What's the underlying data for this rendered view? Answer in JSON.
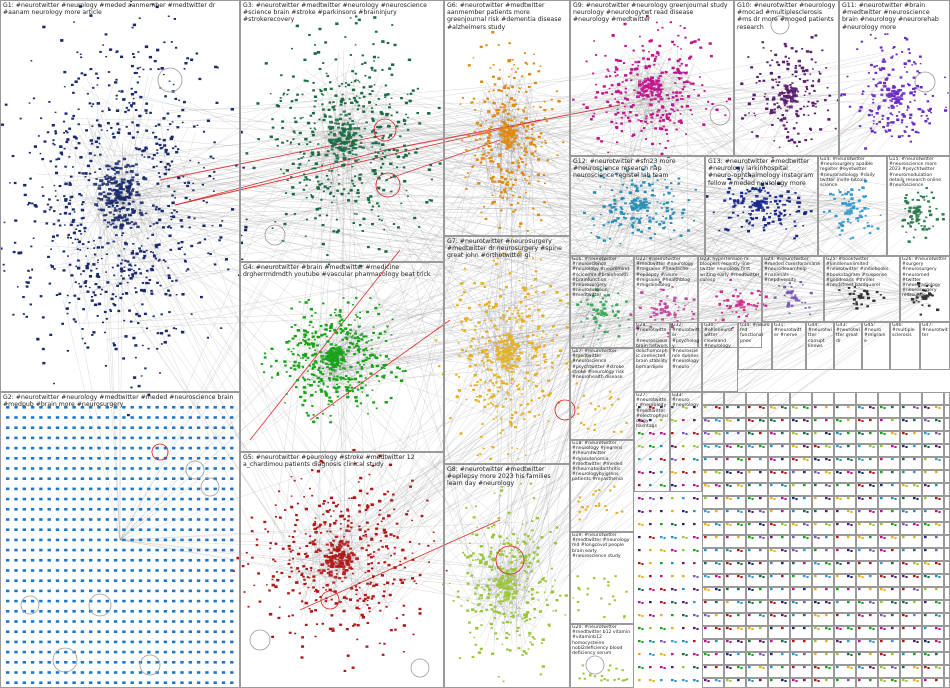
{
  "colors": {
    "G1": "#1a2a6c",
    "G2": "#1f77c8",
    "G3": "#1c6b45",
    "G4": "#1aa31a",
    "G5": "#b01818",
    "G6": "#e08a10",
    "G7": "#e6b020",
    "G8": "#9bc63a",
    "G9": "#c0148c",
    "G10": "#5a1e6e",
    "G11": "#6a2bc8",
    "G12": "#2a8fb5",
    "G13": "#1a2a8c",
    "G14": "#3a9ad0",
    "G15": "#2e7d50",
    "G16": "#3aa85a",
    "G22": "#c048a0",
    "G23": "#d03090",
    "G24": "#7a5ab8",
    "edge": "#8a8a8a",
    "highlight": "#d81b1b"
  },
  "panels": [
    {
      "id": "G1",
      "label": "G1: #neurotwitter #neurology #meded aanmember #medtwitter dr #aanam neurology more article"
    },
    {
      "id": "G2",
      "label": "G2: #neurotwitter #neurology #medtwitter #meded #neuroscience brain #medpub #brain more #neurosurgery"
    },
    {
      "id": "G3",
      "label": "G3: #neurotwitter #medtwitter #neurology #neuroscience #science brain #stroke #parkinsons #braininjury #strokerecovery"
    },
    {
      "id": "G4",
      "label": "G4: #neurotwitter #brain #medtwitter #medicine drgherrmdmdth youtube #vascular pharmacology beat trick"
    },
    {
      "id": "G5",
      "label": "G5: #neurotwitter #neurology #stroke #medtwitter 12 a_chardimou patients diagnosis clinical study"
    },
    {
      "id": "G6",
      "label": "G6: #neurotwitter #medtwitter aanmember patients more greenjournal risk #dementia disease #alzheimers study"
    },
    {
      "id": "G7",
      "label": "G7: #neurotwitter #neurosurgery #medtwitter dr neurosurgery #spine great john #orthotwitter gi"
    },
    {
      "id": "G8",
      "label": "G8: #neurotwitter #medtwitter #epilepsy more 2023 his families learn day #neurology"
    },
    {
      "id": "G9",
      "label": "G9: #neurotwitter #neurology greenjournal study neurology #neurologytwt read disease #neurology #medtwitter"
    },
    {
      "id": "G10",
      "label": "G10: #neurotwitter #neurology #mocad #multiplesclerosis #ms dr more #moged patients research"
    },
    {
      "id": "G11",
      "label": "G11: #neurotwitter #brain #medtwitter #neuroscience brain #neurology #neurorehab #neurology more"
    },
    {
      "id": "G12",
      "label": "G12: #neurotwitter #sfn23 more #neuroscience research nap neuroscience registel lab team"
    },
    {
      "id": "G13",
      "label": "G13: #neurotwitter #medtwitter #neurology larkinhospital #neuro-ophthalmology instagram fellow #meded neurology more"
    },
    {
      "id": "G14",
      "label": "G14: #neurotwitter #neurosurgery apaible register #eyetwitter #neuroradiology #daily twitter invite bitcoin science"
    },
    {
      "id": "G15",
      "label": "G15: #neurotwitter #neuroscience more 2023 #psychtwitter #neuromodulation details research online #neuroscience"
    },
    {
      "id": "G16",
      "label": "G16: #neurotwitter #neuroscience #neurology #neuromind #scicomm #brainhealth #brainfunction #neurosurgery #neurosurgeon #medtwitter"
    },
    {
      "id": "G17",
      "label": "G17: #neurotwitter #medtwitter #neuroscience #psychtwitter #stroke stroke #neurology risk #neurohealth disease"
    },
    {
      "id": "G18",
      "label": "G18: #neurotwitter #neurology #jiegrens #rheumtwitter #dysautonomia #medtwitter #meded #rheumatoidarthritis #neurologybyjgrens patients #myasthenia"
    },
    {
      "id": "G19",
      "label": "G19: #neurotwitter #medtwitter #neurology md #longcovid people brain early #neuroscience study"
    },
    {
      "id": "G20",
      "label": "G20: #neurotwitter #medtwitter b12 vitamin #vitaminb12 homocysteine nobl2deficiency blood deficiency serum"
    },
    {
      "id": "G22",
      "label": "G22: #neurotwitter #medtwitter #neurology #migraine #headache #epilepsy #neuro #migraine #healthblog #migraineblog"
    },
    {
      "id": "G23",
      "label": "G23: hypertension rx bloopers recently line twitter neurology first writing early #medtwitter curesp"
    },
    {
      "id": "G24",
      "label": "G24: #neurotwitter #meded curesforamana #neurodexamhelp #nanimals #nepdiversity"
    },
    {
      "id": "G25",
      "label": "G25: #booktwitter #kindlenunlimited #neurotwitter #indiebooks #bookstagram #suspense #goodreads #thriller #nmdstreet bardquarel"
    },
    {
      "id": "G26",
      "label": "G26: #neurotwitter #surgery #neurosurgery #neuromed #twitter #neuroradiology #neurosurgery redrounds"
    },
    {
      "id": "G28",
      "label": "G28: #neurotwitter #neuroscious brain network dolichomorphic connected brain stability bernardipes"
    },
    {
      "id": "G32",
      "label": "G32: #neurotwitter #psychology #neuroscience dunnes #neurology #neuro"
    },
    {
      "id": "G30",
      "label": "G30: #ohioneurotwitter cleveland #neurology"
    },
    {
      "id": "G34",
      "label": "G34: #neuro fnd functional pnes"
    },
    {
      "id": "G31",
      "label": "G31: #neurotwitter #nerve"
    },
    {
      "id": "G29",
      "label": "G29: #neuro #neurology #neurotwitter patients pain"
    },
    {
      "id": "G41",
      "label": "G41: #neuro #headache"
    },
    {
      "id": "G42",
      "label": "G42"
    },
    {
      "id": "G44",
      "label": "G44: #neurotwitter corrupt knows"
    },
    {
      "id": "G43",
      "label": "G43: #neurotwitter great dr"
    },
    {
      "id": "G45",
      "label": "G45: #neuro #migraine"
    },
    {
      "id": "G46",
      "label": "G46: #multiple sclerosis"
    },
    {
      "id": "G27",
      "label": "G27: #neurotwitter #neurology #medtwitter #electrophysiology hashtags"
    },
    {
      "id": "G47",
      "label": "G47: #neurotwitter"
    },
    {
      "id": "G33",
      "label": "G33: #neuro #neurology"
    }
  ]
}
